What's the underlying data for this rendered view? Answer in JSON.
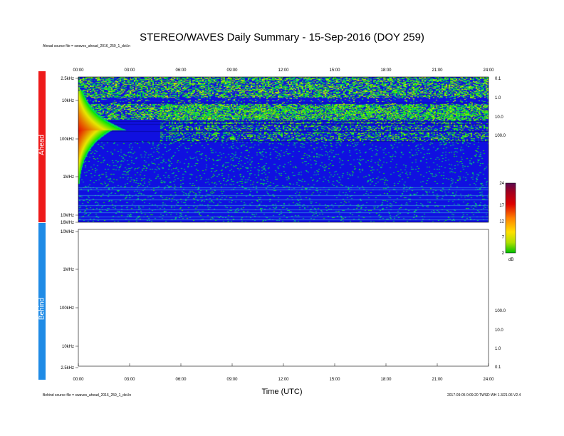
{
  "header": {
    "title": "STEREO/WAVES Daily Summary - 15-Sep-2016 (DOY 259)",
    "ahead_source": "Ahead source file = swaves_ahead_2016_259_1_dst.ln",
    "behind_source": "Behind source file = swaves_ahead_2016_259_1_dst.ln",
    "build_note": "2017-09-05 0:09:20 TWSD WH 1.3/21.06 V2.4"
  },
  "panels": {
    "ahead_label": "Ahead",
    "behind_label": "Behind"
  },
  "colors": {
    "ahead_bar": "#ee1a1a",
    "behind_bar": "#1f8be6",
    "spectrogram_background": "#1010e0",
    "burst_core": "#cc0000"
  },
  "chart_data": {
    "type": "heatmap",
    "title": "STEREO/WAVES Daily Summary - 15-Sep-2016 (DOY 259)",
    "xlabel": "Time (UTC)",
    "x_ticks": [
      "00:00",
      "03:00",
      "06:00",
      "09:00",
      "12:00",
      "15:00",
      "18:00",
      "21:00",
      "24:00"
    ],
    "xlim_hours": [
      0,
      24
    ],
    "ahead": {
      "y_ticks": [
        "2.5kHz",
        "10kHz",
        "100kHz",
        "1MHz",
        "10MHz",
        "16MHz"
      ],
      "right_ticks": [
        "0.1",
        "1.0",
        "10.0",
        "100.0"
      ],
      "frequency_scale": "log",
      "features": [
        {
          "name": "type III burst",
          "start_hour": 0.0,
          "peak_frequency_kHz": 150,
          "peak_intensity_dB": 24,
          "decay_end_hour": 3.5
        }
      ]
    },
    "behind": {
      "y_ticks": [
        "10MHz",
        "1MHz",
        "100kHz",
        "10kHz",
        "2.5kHz"
      ],
      "right_ticks": [
        "100.0",
        "10.0",
        "1.0",
        "0.1"
      ],
      "data": "none"
    },
    "colorbar": {
      "ticks": [
        "24",
        "17",
        "12",
        "7",
        "2"
      ],
      "unit": "dB",
      "range_dB": [
        2,
        24
      ]
    }
  }
}
